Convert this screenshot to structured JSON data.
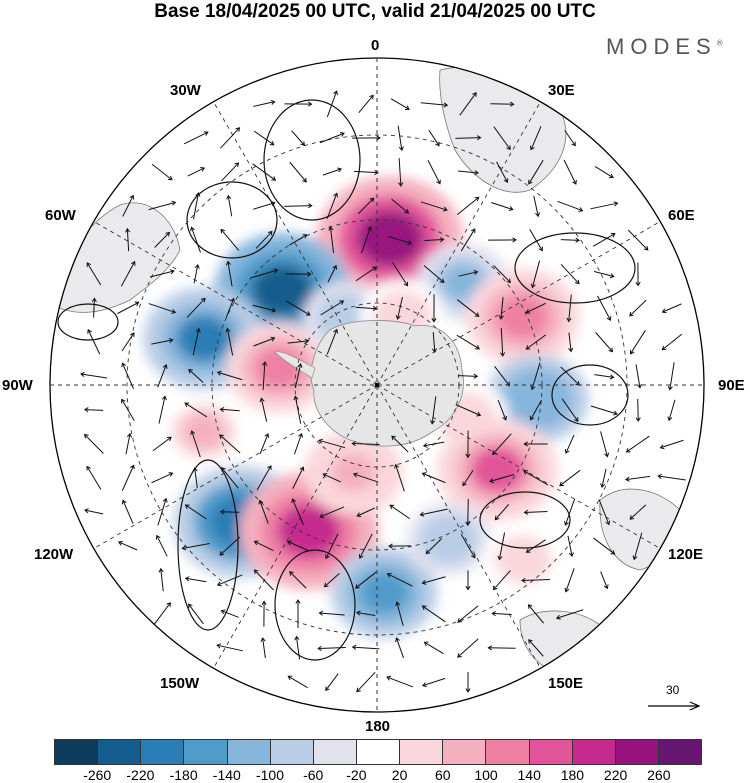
{
  "title": "Base 18/04/2025 00 UTC, valid 21/04/2025 00 UTC",
  "brand": "MODES",
  "brand_mark": "®",
  "longitude_labels": {
    "l0": "0",
    "l30e": "30E",
    "l60e": "60E",
    "l90e": "90E",
    "l120e": "120E",
    "l150e": "150E",
    "l180": "180",
    "l150w": "150W",
    "l120w": "120W",
    "l90w": "90W",
    "l60w": "60W",
    "l30w": "30W"
  },
  "reference_vector": {
    "value": "30"
  },
  "colorbar": {
    "colors": [
      "#0e3a5c",
      "#145d8e",
      "#2a7db5",
      "#4f9bca",
      "#86b6dc",
      "#b9cde6",
      "#e3e3f0",
      "#ffffff",
      "#fad7dc",
      "#f5b0bf",
      "#ee80a4",
      "#e2559a",
      "#c62a8e",
      "#97127f",
      "#661571"
    ],
    "tick_labels": [
      "-260",
      "-220",
      "-180",
      "-140",
      "-100",
      "-60",
      "-20",
      "20",
      "60",
      "100",
      "140",
      "180",
      "220",
      "260"
    ]
  },
  "anomaly_cells": [
    {
      "lon": 5,
      "lat": -55,
      "value": 240
    },
    {
      "lon": -45,
      "lat": -58,
      "value": -210
    },
    {
      "lon": 40,
      "lat": -58,
      "value": -90
    },
    {
      "lon": 65,
      "lat": -52,
      "value": 150
    },
    {
      "lon": -75,
      "lat": -48,
      "value": -170
    },
    {
      "lon": -80,
      "lat": -66,
      "value": 130
    },
    {
      "lon": -25,
      "lat": -72,
      "value": -70
    },
    {
      "lon": 20,
      "lat": -72,
      "value": 70
    },
    {
      "lon": 95,
      "lat": -52,
      "value": -120
    },
    {
      "lon": 110,
      "lat": -67,
      "value": 70
    },
    {
      "lon": 125,
      "lat": -55,
      "value": 170
    },
    {
      "lon": -105,
      "lat": -48,
      "value": 90
    },
    {
      "lon": -135,
      "lat": -45,
      "value": -200
    },
    {
      "lon": -155,
      "lat": -52,
      "value": 220
    },
    {
      "lon": 178,
      "lat": -42,
      "value": -130
    },
    {
      "lon": -165,
      "lat": -68,
      "value": 110
    },
    {
      "lon": 155,
      "lat": -50,
      "value": -70
    },
    {
      "lon": 140,
      "lat": -38,
      "value": 60
    }
  ]
}
